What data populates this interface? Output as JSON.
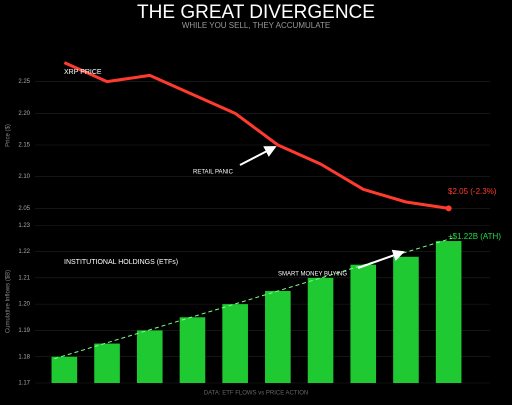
{
  "title": "THE GREAT DIVERGENCE",
  "subtitle": "WHILE YOU SELL, THEY ACCUMULATE",
  "source": "DATA: ETF FLOWS vs PRICE ACTION",
  "chart_data": [
    {
      "type": "line",
      "ylabel": "Price ($)",
      "color": "#ff3b30",
      "values": [
        2.28,
        2.25,
        2.26,
        2.23,
        2.2,
        2.15,
        2.12,
        2.08,
        2.06,
        2.05
      ],
      "ylim": [
        2.03,
        2.3
      ],
      "yticks": [
        2.05,
        {
          "value": 2.1,
          "label": "2.10"
        },
        2.15,
        {
          "value": 2.2,
          "label": "2.20"
        },
        2.25
      ],
      "grid": true,
      "annotations": [
        "XRP PRICE",
        "RETAIL PANIC",
        "$2.05 (-2.3%)"
      ]
    },
    {
      "type": "bar",
      "ylabel": "Cumulative Inflows ($B)",
      "color": "#1ec932",
      "values": [
        1.18,
        1.185,
        1.19,
        1.195,
        1.2,
        1.205,
        1.21,
        1.215,
        1.218,
        1.224
      ],
      "ylim": [
        1.17,
        1.232
      ],
      "yticks": [
        1.17,
        1.18,
        1.19,
        {
          "value": 1.2,
          "label": "1.20"
        },
        1.21,
        1.22,
        1.23
      ],
      "grid": true,
      "annotations": [
        "INSTITUTIONAL HOLDINGS (ETFs)",
        "SMART MONEY BUYING",
        "+$1.22B (ATH)"
      ]
    }
  ]
}
